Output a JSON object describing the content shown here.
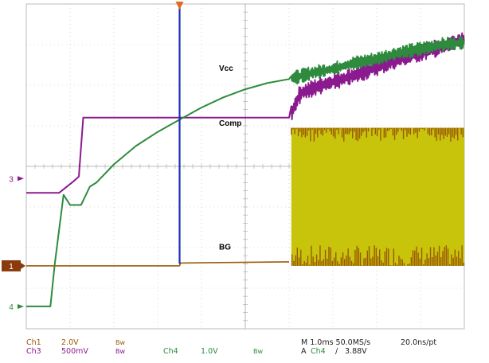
{
  "chart_data": {
    "type": "line",
    "title": "",
    "xlim": [
      0,
      10
    ],
    "grid": true,
    "x_unit": "div",
    "y_unit": "div",
    "trigger_time_div": 3.5,
    "annotations": [
      {
        "text": "Vcc",
        "x": 4.4,
        "y": 6.35
      },
      {
        "text": "Comp",
        "x": 4.4,
        "y": 5.0
      },
      {
        "text": "BG",
        "x": 4.4,
        "y": 1.95
      }
    ],
    "series": [
      {
        "key": "comp",
        "channel": "Ch3",
        "marker_label": "3",
        "marker_level": 3.7,
        "color": "#8a1a8e",
        "points": [
          [
            0,
            3.35
          ],
          [
            0.75,
            3.35
          ],
          [
            1.1,
            3.65
          ],
          [
            1.2,
            3.75
          ],
          [
            1.3,
            5.2
          ],
          [
            1.45,
            5.2
          ],
          [
            2.0,
            5.2
          ],
          [
            5.6,
            5.2
          ],
          [
            6.0,
            5.2
          ],
          [
            6.25,
            5.8
          ],
          [
            6.6,
            5.95
          ],
          [
            7.5,
            6.25
          ],
          [
            8.5,
            6.65
          ],
          [
            9.5,
            6.95
          ],
          [
            10,
            7.15
          ]
        ],
        "noise_from_div": 6.05,
        "noise_amplitude": 0.15
      },
      {
        "key": "vcc",
        "channel": "Ch4",
        "marker_label": "4",
        "marker_level": 0.55,
        "color": "#2e8b3e",
        "points": [
          [
            0,
            0.55
          ],
          [
            0.55,
            0.55
          ],
          [
            0.65,
            1.6
          ],
          [
            0.85,
            3.3
          ],
          [
            1.0,
            3.05
          ],
          [
            1.25,
            3.05
          ],
          [
            1.45,
            3.5
          ],
          [
            1.6,
            3.6
          ],
          [
            2.0,
            4.05
          ],
          [
            2.5,
            4.5
          ],
          [
            3.0,
            4.85
          ],
          [
            3.5,
            5.15
          ],
          [
            4.0,
            5.45
          ],
          [
            4.5,
            5.7
          ],
          [
            5.0,
            5.9
          ],
          [
            5.5,
            6.05
          ],
          [
            6.0,
            6.15
          ],
          [
            6.5,
            6.3
          ],
          [
            7.0,
            6.4
          ],
          [
            7.5,
            6.55
          ],
          [
            8.0,
            6.65
          ],
          [
            8.5,
            6.8
          ],
          [
            9.0,
            6.9
          ],
          [
            9.5,
            7.0
          ],
          [
            10,
            7.05
          ]
        ],
        "noise_from_div": 6.05,
        "noise_amplitude": 0.12
      },
      {
        "key": "bg",
        "channel": "Ch1",
        "marker_label": "1",
        "marker_level": 1.55,
        "color": "#9a5a08",
        "points": [
          [
            0,
            1.55
          ],
          [
            3.5,
            1.55
          ],
          [
            3.52,
            1.62
          ],
          [
            6.0,
            1.65
          ]
        ],
        "switching": {
          "from_div": 6.05,
          "to_div": 10,
          "low": 1.55,
          "high": 4.95,
          "fill": "#c8c40c"
        }
      }
    ]
  },
  "readout": {
    "ch1_name": "Ch1",
    "ch1_scale": "2.0V",
    "ch1_bw": "Bw",
    "ch3_name": "Ch3",
    "ch3_scale": "500mV",
    "ch3_bw": "Bw",
    "ch4_name": "Ch4",
    "ch4_scale": "1.0V",
    "ch4_bw": "Bw",
    "timebase": "M 1.0ms 50.0MS/s",
    "sample_interval": "20.0ns/pt",
    "trigger_mode": "A",
    "trigger_source": "Ch4",
    "trigger_slope": "/",
    "trigger_level": "3.88V"
  },
  "colors": {
    "background": "#ffffff",
    "graticule": "#bbbbbb",
    "cursor": "#1c2fb8",
    "trigger_marker": "#e06a1e",
    "ch1": "#9a5a08",
    "ch3": "#8a1a8e",
    "ch4": "#2e8b3e",
    "switching_fill": "#c8c40c"
  }
}
